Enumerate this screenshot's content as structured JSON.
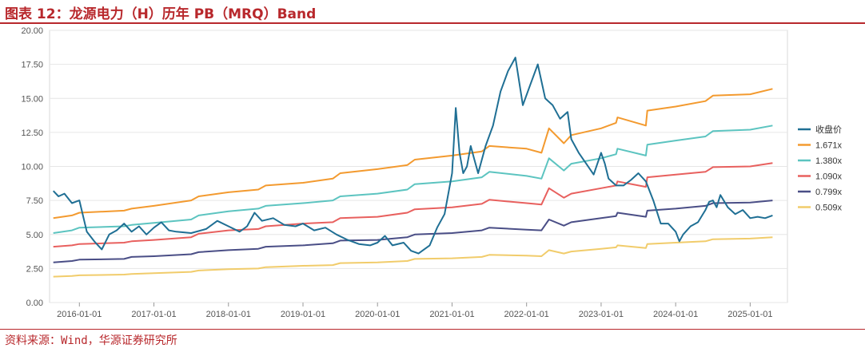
{
  "header": {
    "title": "图表 12：龙源电力（H）历年 PB（MRQ）Band"
  },
  "footer": {
    "source": "资料来源：Wind，华源证券研究所"
  },
  "colors": {
    "accent": "#b8282c"
  },
  "chart_data": {
    "type": "line",
    "title": "图表 12：龙源电力（H）历年 PB（MRQ）Band",
    "xlabel": "",
    "ylabel": "",
    "ylim": [
      0,
      20
    ],
    "xlim": [
      2015.6,
      2025.5
    ],
    "y_ticks": [
      0,
      2.5,
      5,
      7.5,
      10,
      12.5,
      15,
      17.5,
      20
    ],
    "y_tick_labels": [
      "0.00",
      "2.50",
      "5.00",
      "7.50",
      "10.00",
      "12.50",
      "15.00",
      "17.50",
      "20.00"
    ],
    "x_ticks": [
      2016,
      2017,
      2018,
      2019,
      2020,
      2021,
      2022,
      2023,
      2024,
      2025
    ],
    "x_tick_labels": [
      "2016-01-01",
      "2017-01-01",
      "2018-01-01",
      "2019-01-01",
      "2020-01-01",
      "2021-01-01",
      "2022-01-01",
      "2023-01-01",
      "2024-01-01",
      "2025-01-01"
    ],
    "grid": "horizontal",
    "legend_position": "right",
    "series": [
      {
        "name": "收盘价",
        "color": "#1f6f94",
        "x": [
          2015.65,
          2015.72,
          2015.8,
          2015.9,
          2016.0,
          2016.1,
          2016.2,
          2016.3,
          2016.4,
          2016.5,
          2016.6,
          2016.7,
          2016.8,
          2016.9,
          2017.0,
          2017.1,
          2017.2,
          2017.3,
          2017.5,
          2017.7,
          2017.85,
          2018.0,
          2018.15,
          2018.25,
          2018.35,
          2018.45,
          2018.6,
          2018.75,
          2018.9,
          2019.0,
          2019.15,
          2019.3,
          2019.45,
          2019.6,
          2019.75,
          2019.9,
          2020.0,
          2020.1,
          2020.2,
          2020.35,
          2020.45,
          2020.55,
          2020.7,
          2020.8,
          2020.9,
          2021.0,
          2021.05,
          2021.1,
          2021.15,
          2021.2,
          2021.25,
          2021.3,
          2021.35,
          2021.45,
          2021.55,
          2021.65,
          2021.75,
          2021.85,
          2021.95,
          2022.05,
          2022.15,
          2022.25,
          2022.35,
          2022.45,
          2022.55,
          2022.6,
          2022.7,
          2022.8,
          2022.9,
          2023.0,
          2023.05,
          2023.1,
          2023.2,
          2023.3,
          2023.4,
          2023.5,
          2023.6,
          2023.7,
          2023.8,
          2023.9,
          2024.0,
          2024.05,
          2024.1,
          2024.2,
          2024.3,
          2024.4,
          2024.45,
          2024.5,
          2024.55,
          2024.6,
          2024.7,
          2024.8,
          2024.9,
          2025.0,
          2025.1,
          2025.2,
          2025.3
        ],
        "values": [
          8.2,
          7.8,
          8.0,
          7.3,
          7.5,
          5.2,
          4.5,
          3.9,
          5.0,
          5.3,
          5.8,
          5.2,
          5.6,
          5.0,
          5.5,
          5.9,
          5.3,
          5.2,
          5.1,
          5.4,
          6.0,
          5.6,
          5.2,
          5.6,
          6.6,
          6.0,
          6.2,
          5.7,
          5.6,
          5.8,
          5.3,
          5.5,
          5.0,
          4.6,
          4.3,
          4.2,
          4.4,
          4.9,
          4.2,
          4.4,
          3.8,
          3.6,
          4.2,
          5.5,
          6.5,
          9.5,
          14.3,
          11.0,
          9.5,
          10.0,
          11.5,
          10.5,
          9.5,
          11.5,
          13.0,
          15.5,
          17.0,
          18.0,
          14.5,
          16.0,
          17.5,
          15.0,
          14.5,
          13.5,
          14.0,
          12.0,
          11.0,
          10.2,
          9.4,
          11.0,
          10.2,
          9.1,
          8.6,
          8.6,
          9.0,
          9.5,
          8.9,
          7.5,
          5.8,
          5.8,
          5.2,
          4.5,
          5.0,
          5.6,
          5.9,
          6.8,
          7.4,
          7.5,
          7.0,
          7.9,
          7.0,
          6.5,
          6.8,
          6.2,
          6.3,
          6.2,
          6.4
        ]
      },
      {
        "name": "1.671x",
        "color": "#f39a2f",
        "x": [
          2015.65,
          2015.9,
          2016.0,
          2016.6,
          2016.7,
          2017.0,
          2017.5,
          2017.6,
          2018.0,
          2018.4,
          2018.5,
          2019.0,
          2019.4,
          2019.5,
          2020.0,
          2020.4,
          2020.5,
          2021.0,
          2021.4,
          2021.5,
          2022.0,
          2022.2,
          2022.3,
          2022.5,
          2022.6,
          2023.0,
          2023.2,
          2023.22,
          2023.6,
          2023.62,
          2024.0,
          2024.4,
          2024.5,
          2025.0,
          2025.3
        ],
        "values": [
          6.2,
          6.4,
          6.6,
          6.75,
          6.9,
          7.1,
          7.5,
          7.8,
          8.1,
          8.3,
          8.6,
          8.8,
          9.1,
          9.5,
          9.8,
          10.1,
          10.5,
          10.8,
          11.1,
          11.5,
          11.3,
          11.0,
          12.8,
          11.7,
          12.3,
          12.8,
          13.2,
          13.6,
          13.0,
          14.1,
          14.4,
          14.8,
          15.2,
          15.3,
          15.7
        ]
      },
      {
        "name": "1.380x",
        "color": "#5cc4c0",
        "x": [
          2015.65,
          2015.9,
          2016.0,
          2016.6,
          2016.7,
          2017.0,
          2017.5,
          2017.6,
          2018.0,
          2018.4,
          2018.5,
          2019.0,
          2019.4,
          2019.5,
          2020.0,
          2020.4,
          2020.5,
          2021.0,
          2021.4,
          2021.5,
          2022.0,
          2022.2,
          2022.3,
          2022.5,
          2022.6,
          2023.0,
          2023.2,
          2023.22,
          2023.6,
          2023.62,
          2024.0,
          2024.4,
          2024.5,
          2025.0,
          2025.3
        ],
        "values": [
          5.1,
          5.3,
          5.5,
          5.6,
          5.7,
          5.85,
          6.1,
          6.4,
          6.7,
          6.9,
          7.1,
          7.3,
          7.5,
          7.8,
          8.0,
          8.3,
          8.7,
          8.9,
          9.2,
          9.6,
          9.3,
          9.1,
          10.6,
          9.7,
          10.2,
          10.6,
          10.9,
          11.3,
          10.8,
          11.6,
          11.9,
          12.2,
          12.6,
          12.7,
          13.0
        ]
      },
      {
        "name": "1.090x",
        "color": "#e8605e",
        "x": [
          2015.65,
          2015.9,
          2016.0,
          2016.6,
          2016.7,
          2017.0,
          2017.5,
          2017.6,
          2018.0,
          2018.4,
          2018.5,
          2019.0,
          2019.4,
          2019.5,
          2020.0,
          2020.4,
          2020.5,
          2021.0,
          2021.4,
          2021.5,
          2022.0,
          2022.2,
          2022.3,
          2022.5,
          2022.6,
          2023.0,
          2023.2,
          2023.22,
          2023.6,
          2023.62,
          2024.0,
          2024.4,
          2024.5,
          2025.0,
          2025.3
        ],
        "values": [
          4.1,
          4.2,
          4.3,
          4.4,
          4.5,
          4.6,
          4.8,
          5.05,
          5.3,
          5.4,
          5.6,
          5.8,
          5.9,
          6.2,
          6.3,
          6.6,
          6.85,
          7.0,
          7.25,
          7.55,
          7.3,
          7.2,
          8.4,
          7.7,
          8.0,
          8.4,
          8.6,
          8.9,
          8.5,
          9.2,
          9.4,
          9.6,
          9.95,
          10.0,
          10.25
        ]
      },
      {
        "name": "0.799x",
        "color": "#4a4e86",
        "x": [
          2015.65,
          2015.9,
          2016.0,
          2016.6,
          2016.7,
          2017.0,
          2017.5,
          2017.6,
          2018.0,
          2018.4,
          2018.5,
          2019.0,
          2019.4,
          2019.5,
          2020.0,
          2020.4,
          2020.5,
          2021.0,
          2021.4,
          2021.5,
          2022.0,
          2022.2,
          2022.3,
          2022.5,
          2022.6,
          2023.0,
          2023.2,
          2023.22,
          2023.6,
          2023.62,
          2024.0,
          2024.4,
          2024.5,
          2025.0,
          2025.3
        ],
        "values": [
          2.95,
          3.05,
          3.15,
          3.2,
          3.35,
          3.4,
          3.55,
          3.7,
          3.85,
          3.95,
          4.1,
          4.2,
          4.35,
          4.55,
          4.6,
          4.8,
          5.0,
          5.1,
          5.3,
          5.5,
          5.35,
          5.3,
          6.1,
          5.65,
          5.9,
          6.2,
          6.35,
          6.6,
          6.3,
          6.75,
          6.9,
          7.1,
          7.3,
          7.35,
          7.5
        ]
      },
      {
        "name": "0.509x",
        "color": "#f1cc6b",
        "x": [
          2015.65,
          2015.9,
          2016.0,
          2016.6,
          2016.7,
          2017.0,
          2017.5,
          2017.6,
          2018.0,
          2018.4,
          2018.5,
          2019.0,
          2019.4,
          2019.5,
          2020.0,
          2020.4,
          2020.5,
          2021.0,
          2021.4,
          2021.5,
          2022.0,
          2022.2,
          2022.3,
          2022.5,
          2022.6,
          2023.0,
          2023.2,
          2023.22,
          2023.6,
          2023.62,
          2024.0,
          2024.4,
          2024.5,
          2025.0,
          2025.3
        ],
        "values": [
          1.9,
          1.95,
          2.0,
          2.05,
          2.1,
          2.15,
          2.25,
          2.35,
          2.45,
          2.5,
          2.6,
          2.7,
          2.75,
          2.9,
          2.95,
          3.05,
          3.2,
          3.25,
          3.35,
          3.5,
          3.45,
          3.4,
          3.85,
          3.6,
          3.75,
          3.95,
          4.05,
          4.2,
          4.0,
          4.3,
          4.4,
          4.5,
          4.65,
          4.7,
          4.8
        ]
      }
    ]
  }
}
